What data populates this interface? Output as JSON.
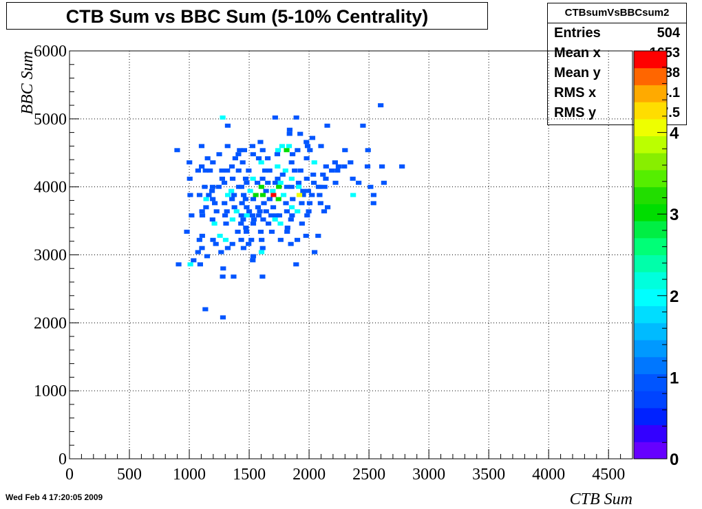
{
  "title": "CTB Sum vs BBC Sum (5-10% Centrality)",
  "date": "Wed Feb  4 17:20:05 2009",
  "stats": {
    "name": "CTBsumVsBBCsum2",
    "rows": [
      {
        "label": "Entries",
        "value": "504"
      },
      {
        "label": "Mean x",
        "value": "1653"
      },
      {
        "label": "Mean y",
        "value": "3888"
      },
      {
        "label": "RMS x",
        "value": "334.1"
      },
      {
        "label": "RMS y",
        "value": "457.5"
      }
    ]
  },
  "chart_data": {
    "type": "heatmap",
    "xlabel": "CTB Sum",
    "ylabel": "BBC Sum",
    "xlim": [
      0,
      4700
    ],
    "ylim": [
      0,
      6000
    ],
    "xticks": [
      "0",
      "500",
      "1000",
      "1500",
      "2000",
      "2500",
      "3000",
      "3500",
      "4000",
      "4500"
    ],
    "yticks": [
      "0",
      "1000",
      "2000",
      "3000",
      "4000",
      "5000",
      "6000"
    ],
    "zlim": [
      0,
      5
    ],
    "zticks": [
      "0",
      "1",
      "2",
      "3",
      "4"
    ],
    "grid": true,
    "bin_width_x": 47,
    "bin_width_y": 60,
    "colors": [
      "#6600ff",
      "#3300ff",
      "#0022ff",
      "#0044ff",
      "#0055ff",
      "#0077ff",
      "#0099ff",
      "#00bbff",
      "#00ddff",
      "#00ffff",
      "#00ffdd",
      "#00ffaa",
      "#00ff77",
      "#00ee44",
      "#00dd00",
      "#22dd00",
      "#55ee00",
      "#88ee00",
      "#bbff00",
      "#eeff00",
      "#ffdd00",
      "#ffaa00",
      "#ff6600",
      "#ff0000"
    ],
    "points": [
      [
        1279,
        5020,
        2
      ],
      [
        1321,
        4900,
        1
      ],
      [
        1838,
        4840,
        1
      ],
      [
        1837,
        4780,
        1
      ],
      [
        1926,
        4780,
        1
      ],
      [
        2152,
        4900,
        1
      ],
      [
        2450,
        4900,
        1
      ],
      [
        2598,
        5200,
        1
      ],
      [
        1717,
        5020,
        1
      ],
      [
        1894,
        5020,
        1
      ],
      [
        899,
        4540,
        1
      ],
      [
        1103,
        4600,
        1
      ],
      [
        1320,
        4600,
        1
      ],
      [
        1528,
        4600,
        1
      ],
      [
        1594,
        4660,
        1
      ],
      [
        1775,
        4600,
        2
      ],
      [
        1833,
        4600,
        2
      ],
      [
        1904,
        4540,
        1
      ],
      [
        1978,
        4660,
        1
      ],
      [
        1988,
        4600,
        1
      ],
      [
        2007,
        4540,
        1
      ],
      [
        2028,
        4720,
        1
      ],
      [
        2100,
        4600,
        1
      ],
      [
        2300,
        4540,
        1
      ],
      [
        2492,
        4540,
        1
      ],
      [
        1250,
        4480,
        1
      ],
      [
        1421,
        4540,
        1
      ],
      [
        1459,
        4540,
        1
      ],
      [
        1613,
        4540,
        1
      ],
      [
        1741,
        4540,
        2
      ],
      [
        1813,
        4540,
        3
      ],
      [
        1862,
        4480,
        1
      ],
      [
        1001,
        4360,
        1
      ],
      [
        1153,
        4420,
        1
      ],
      [
        1384,
        4420,
        1
      ],
      [
        1410,
        4480,
        1
      ],
      [
        1533,
        4480,
        1
      ],
      [
        1580,
        4420,
        1
      ],
      [
        1655,
        4420,
        1
      ],
      [
        1735,
        4480,
        1
      ],
      [
        1980,
        4420,
        1
      ],
      [
        2044,
        4360,
        2
      ],
      [
        2142,
        4300,
        1
      ],
      [
        2217,
        4360,
        1
      ],
      [
        2346,
        4360,
        1
      ],
      [
        1104,
        4300,
        1
      ],
      [
        1197,
        4360,
        1
      ],
      [
        1356,
        4300,
        1
      ],
      [
        1446,
        4360,
        1
      ],
      [
        1601,
        4360,
        2
      ],
      [
        1737,
        4300,
        2
      ],
      [
        1854,
        4360,
        1
      ],
      [
        2246,
        4300,
        1
      ],
      [
        2294,
        4300,
        1
      ],
      [
        2488,
        4300,
        1
      ],
      [
        2609,
        4300,
        1
      ],
      [
        2776,
        4300,
        1
      ],
      [
        1074,
        4240,
        1
      ],
      [
        1136,
        4240,
        1
      ],
      [
        1173,
        4240,
        1
      ],
      [
        1273,
        4240,
        1
      ],
      [
        1317,
        4240,
        1
      ],
      [
        1412,
        4240,
        1
      ],
      [
        1496,
        4240,
        1
      ],
      [
        1632,
        4240,
        1
      ],
      [
        1670,
        4240,
        1
      ],
      [
        1803,
        4240,
        2
      ],
      [
        1880,
        4240,
        1
      ],
      [
        1929,
        4240,
        1
      ],
      [
        2190,
        4240,
        1
      ],
      [
        2237,
        4240,
        1
      ],
      [
        1004,
        4120,
        1
      ],
      [
        1275,
        4120,
        1
      ],
      [
        1362,
        4120,
        1
      ],
      [
        1471,
        4120,
        1
      ],
      [
        1532,
        4120,
        2
      ],
      [
        1612,
        4120,
        1
      ],
      [
        1738,
        4120,
        1
      ],
      [
        1780,
        4180,
        1
      ],
      [
        1855,
        4120,
        2
      ],
      [
        1913,
        4060,
        1
      ],
      [
        1981,
        4120,
        1
      ],
      [
        2035,
        4180,
        1
      ],
      [
        2116,
        4180,
        1
      ],
      [
        2140,
        4120,
        1
      ],
      [
        2221,
        4060,
        1
      ],
      [
        2365,
        4120,
        1
      ],
      [
        2625,
        4060,
        1
      ],
      [
        1129,
        4000,
        1
      ],
      [
        1195,
        4000,
        1
      ],
      [
        1293,
        4060,
        1
      ],
      [
        1414,
        4000,
        1
      ],
      [
        1479,
        4060,
        1
      ],
      [
        1569,
        4060,
        1
      ],
      [
        1656,
        4060,
        1
      ],
      [
        1718,
        4060,
        1
      ],
      [
        1762,
        4060,
        2
      ],
      [
        1815,
        4000,
        1
      ],
      [
        1914,
        4000,
        2
      ],
      [
        2040,
        4060,
        1
      ],
      [
        2080,
        4000,
        1
      ],
      [
        2130,
        4000,
        1
      ],
      [
        2414,
        4060,
        1
      ],
      [
        2513,
        4000,
        1
      ],
      [
        1190,
        3940,
        1
      ],
      [
        1246,
        4000,
        1
      ],
      [
        1351,
        3940,
        2
      ],
      [
        1436,
        4000,
        1
      ],
      [
        1509,
        3940,
        2
      ],
      [
        1602,
        4000,
        3
      ],
      [
        1641,
        3940,
        1
      ],
      [
        1697,
        3940,
        2
      ],
      [
        1748,
        4000,
        3
      ],
      [
        1854,
        4000,
        1
      ],
      [
        1950,
        3940,
        1
      ],
      [
        1993,
        3940,
        1
      ],
      [
        2088,
        4000,
        1
      ],
      [
        1008,
        3880,
        1
      ],
      [
        1086,
        3880,
        1
      ],
      [
        1163,
        3880,
        1
      ],
      [
        1322,
        3880,
        2
      ],
      [
        1374,
        3880,
        1
      ],
      [
        1454,
        3880,
        1
      ],
      [
        1555,
        3880,
        3
      ],
      [
        1614,
        3880,
        3
      ],
      [
        1703,
        3880,
        5
      ],
      [
        1787,
        3880,
        2
      ],
      [
        1863,
        3820,
        1
      ],
      [
        1951,
        3880,
        1
      ],
      [
        2024,
        3880,
        1
      ],
      [
        2088,
        3880,
        1
      ],
      [
        2368,
        3880,
        2
      ],
      [
        2539,
        3880,
        1
      ],
      [
        1141,
        3820,
        2
      ],
      [
        1196,
        3820,
        1
      ],
      [
        1294,
        3760,
        1
      ],
      [
        1357,
        3820,
        1
      ],
      [
        1470,
        3820,
        1
      ],
      [
        1534,
        3820,
        1
      ],
      [
        1623,
        3760,
        1
      ],
      [
        1671,
        3820,
        1
      ],
      [
        1745,
        3820,
        3
      ],
      [
        1807,
        3760,
        1
      ],
      [
        1919,
        3880,
        4
      ],
      [
        2005,
        3760,
        1
      ],
      [
        2096,
        3760,
        1
      ],
      [
        2538,
        3760,
        1
      ],
      [
        1140,
        3700,
        1
      ],
      [
        1213,
        3760,
        1
      ],
      [
        1377,
        3700,
        1
      ],
      [
        1440,
        3760,
        1
      ],
      [
        1479,
        3700,
        1
      ],
      [
        1574,
        3700,
        1
      ],
      [
        1701,
        3700,
        1
      ],
      [
        1856,
        3700,
        2
      ],
      [
        1939,
        3760,
        1
      ],
      [
        2155,
        3700,
        1
      ],
      [
        1019,
        3580,
        1
      ],
      [
        1107,
        3640,
        1
      ],
      [
        1228,
        3640,
        1
      ],
      [
        1314,
        3640,
        1
      ],
      [
        1395,
        3640,
        2
      ],
      [
        1500,
        3640,
        1
      ],
      [
        1589,
        3640,
        1
      ],
      [
        1642,
        3640,
        1
      ],
      [
        1752,
        3580,
        1
      ],
      [
        1815,
        3640,
        1
      ],
      [
        1903,
        3640,
        2
      ],
      [
        1997,
        3640,
        1
      ],
      [
        2126,
        3640,
        1
      ],
      [
        1109,
        3580,
        1
      ],
      [
        1299,
        3580,
        1
      ],
      [
        1435,
        3580,
        1
      ],
      [
        1481,
        3580,
        2
      ],
      [
        1528,
        3580,
        1
      ],
      [
        1580,
        3580,
        1
      ],
      [
        1684,
        3580,
        1
      ],
      [
        1728,
        3580,
        1
      ],
      [
        1858,
        3580,
        1
      ],
      [
        1984,
        3580,
        1
      ],
      [
        1194,
        3520,
        1
      ],
      [
        1361,
        3520,
        2
      ],
      [
        1450,
        3520,
        1
      ],
      [
        1539,
        3520,
        1
      ],
      [
        1617,
        3520,
        1
      ],
      [
        1716,
        3520,
        2
      ],
      [
        1761,
        3460,
        2
      ],
      [
        1849,
        3520,
        1
      ],
      [
        1941,
        3460,
        1
      ],
      [
        1210,
        3460,
        2
      ],
      [
        1307,
        3460,
        1
      ],
      [
        1432,
        3460,
        1
      ],
      [
        1473,
        3400,
        1
      ],
      [
        1534,
        3460,
        1
      ],
      [
        1661,
        3460,
        1
      ],
      [
        1820,
        3400,
        1
      ],
      [
        980,
        3340,
        1
      ],
      [
        1108,
        3280,
        1
      ],
      [
        1256,
        3280,
        2
      ],
      [
        1405,
        3340,
        1
      ],
      [
        1477,
        3340,
        1
      ],
      [
        1597,
        3340,
        1
      ],
      [
        1689,
        3340,
        1
      ],
      [
        1817,
        3340,
        1
      ],
      [
        1975,
        3280,
        1
      ],
      [
        2076,
        3280,
        1
      ],
      [
        1085,
        3220,
        1
      ],
      [
        1198,
        3220,
        1
      ],
      [
        1304,
        3220,
        2
      ],
      [
        1434,
        3220,
        1
      ],
      [
        1518,
        3220,
        1
      ],
      [
        1604,
        3220,
        1
      ],
      [
        1763,
        3220,
        1
      ],
      [
        1902,
        3220,
        1
      ],
      [
        1222,
        3160,
        1
      ],
      [
        1360,
        3160,
        1
      ],
      [
        1495,
        3160,
        1
      ],
      [
        1613,
        3100,
        1
      ],
      [
        1848,
        3160,
        1
      ],
      [
        1106,
        3100,
        1
      ],
      [
        1321,
        3100,
        1
      ],
      [
        1453,
        3100,
        1
      ],
      [
        1603,
        3040,
        2
      ],
      [
        2046,
        3040,
        1
      ],
      [
        1073,
        3040,
        1
      ],
      [
        1149,
        2980,
        1
      ],
      [
        1266,
        3040,
        1
      ],
      [
        1530,
        2920,
        1
      ],
      [
        1534,
        2980,
        1
      ],
      [
        1036,
        2920,
        1
      ],
      [
        911,
        2860,
        1
      ],
      [
        1009,
        2860,
        2
      ],
      [
        1091,
        2860,
        1
      ],
      [
        1892,
        2860,
        1
      ],
      [
        1283,
        2800,
        1
      ],
      [
        1279,
        2680,
        1
      ],
      [
        1370,
        2680,
        1
      ],
      [
        1611,
        2680,
        1
      ],
      [
        1134,
        2200,
        1
      ],
      [
        1281,
        2080,
        1
      ]
    ]
  }
}
